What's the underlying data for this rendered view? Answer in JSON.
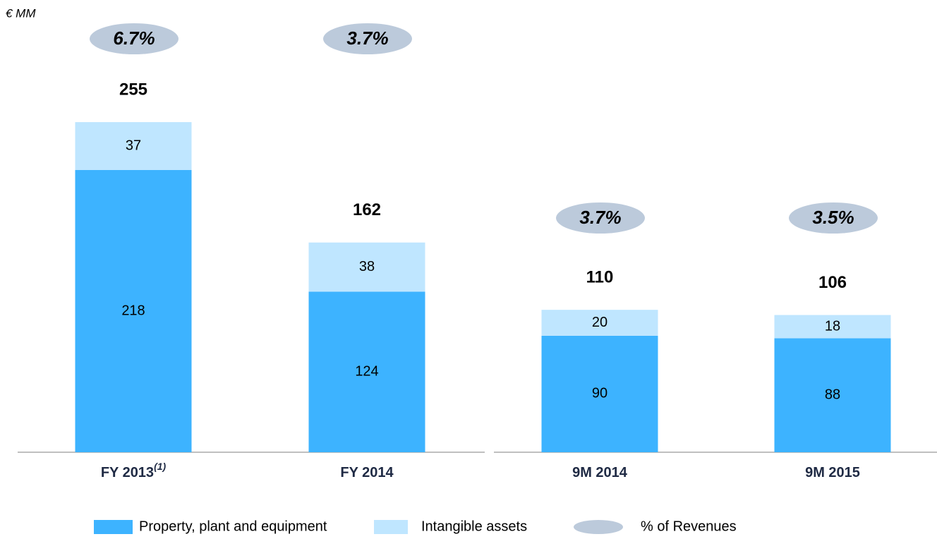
{
  "chart_data": {
    "type": "stacked_bar",
    "unit_label": "€ MM",
    "categories": [
      "FY 2013",
      "FY 2014",
      "9M 2014",
      "9M 2015"
    ],
    "category_superscripts": [
      "(1)",
      null,
      null,
      null
    ],
    "series": [
      {
        "name": "Property, plant and equipment",
        "color": "#3db3ff",
        "values": [
          218,
          124,
          90,
          88
        ]
      },
      {
        "name": "Intangible assets",
        "color": "#bfe6ff",
        "values": [
          37,
          38,
          20,
          18
        ]
      }
    ],
    "totals": [
      255,
      162,
      110,
      106
    ],
    "ratio": {
      "name": "% of Revenues",
      "color": "#bccadb",
      "values": [
        6.7,
        3.7,
        3.7,
        3.5
      ],
      "value_labels": [
        "6.7%",
        "3.7%",
        "3.7%",
        "3.5%"
      ]
    }
  }
}
